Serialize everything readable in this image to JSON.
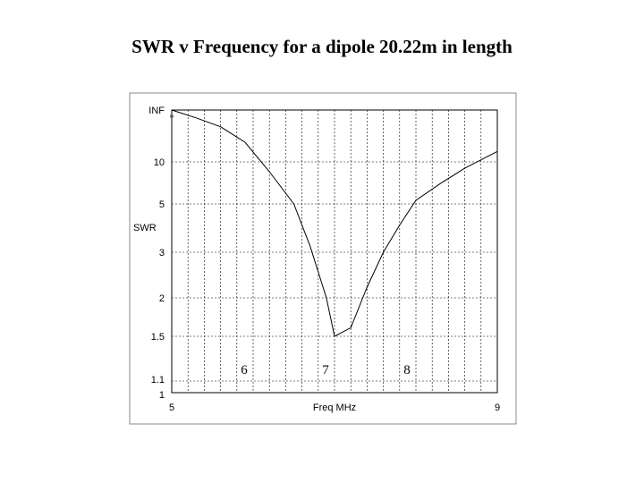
{
  "title": "SWR v Frequency for a dipole 20.22m in length",
  "chart_data": {
    "type": "line",
    "title": "SWR v Frequency for a dipole 20.22m in length",
    "xlabel": "Freq MHz",
    "ylabel": "SWR",
    "xlim": [
      5,
      9
    ],
    "x_tick_labels": [
      "5",
      "9"
    ],
    "inner_x_labels": [
      {
        "x": 6,
        "label": "6"
      },
      {
        "x": 7,
        "label": "7"
      },
      {
        "x": 8,
        "label": "8"
      }
    ],
    "y_ticks": [
      "1",
      "1.1",
      "1.5",
      "2",
      "3",
      "5",
      "10",
      "INF"
    ],
    "grid": true,
    "series": [
      {
        "values": [
          {
            "x": 5.0,
            "y": 20
          },
          {
            "x": 5.3,
            "y": 18
          },
          {
            "x": 5.6,
            "y": 16
          },
          {
            "x": 5.9,
            "y": 13
          },
          {
            "x": 6.2,
            "y": 8.5
          },
          {
            "x": 6.5,
            "y": 5
          },
          {
            "x": 6.7,
            "y": 3.2
          },
          {
            "x": 6.9,
            "y": 2.0
          },
          {
            "x": 7.0,
            "y": 1.5
          },
          {
            "x": 7.2,
            "y": 1.6
          },
          {
            "x": 7.4,
            "y": 2.2
          },
          {
            "x": 7.6,
            "y": 3.0
          },
          {
            "x": 7.8,
            "y": 4.0
          },
          {
            "x": 8.0,
            "y": 5.3
          },
          {
            "x": 8.3,
            "y": 7.0
          },
          {
            "x": 8.6,
            "y": 9.0
          },
          {
            "x": 9.0,
            "y": 11.5
          }
        ]
      }
    ]
  }
}
